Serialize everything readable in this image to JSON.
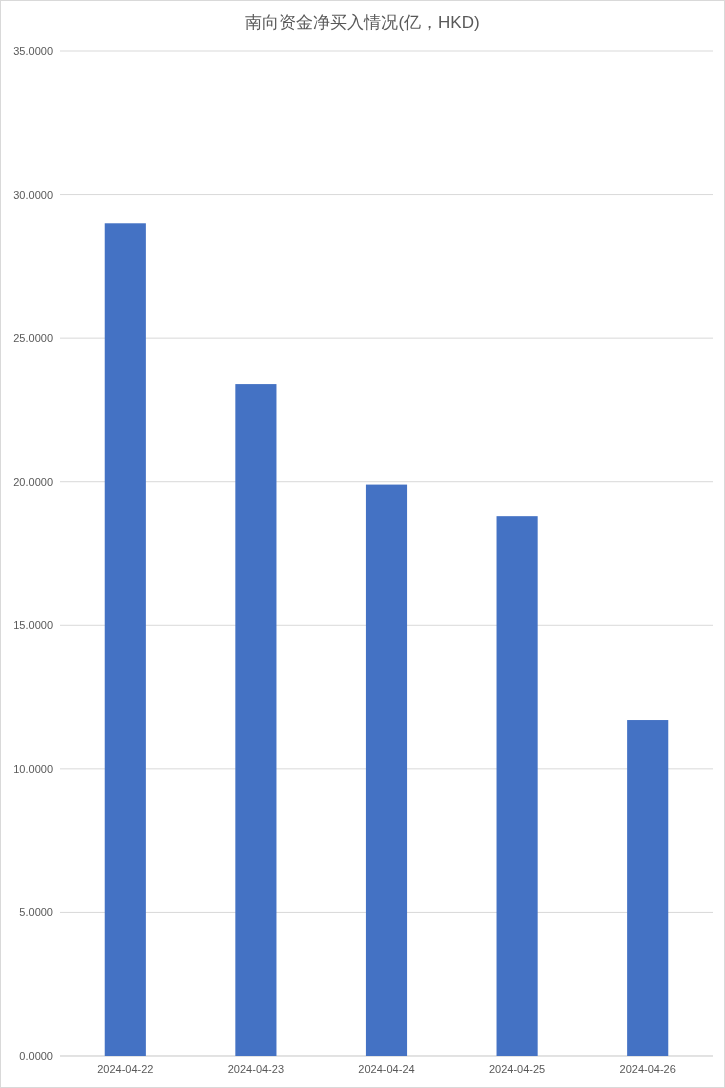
{
  "chart_data": {
    "type": "bar",
    "title": "南向资金净买入情况(亿，HKD)",
    "categories": [
      "2024-04-22",
      "2024-04-23",
      "2024-04-24",
      "2024-04-25",
      "2024-04-26"
    ],
    "values": [
      29.0,
      23.4,
      19.9,
      18.8,
      11.7
    ],
    "color": "#4472c4",
    "ylim": [
      0,
      35
    ],
    "yticks": [
      {
        "value": 0,
        "label": "0.0000"
      },
      {
        "value": 5,
        "label": "5.0000"
      },
      {
        "value": 10,
        "label": "10.0000"
      },
      {
        "value": 15,
        "label": "15.0000"
      },
      {
        "value": 20,
        "label": "20.0000"
      },
      {
        "value": 25,
        "label": "25.0000"
      },
      {
        "value": 30,
        "label": "30.0000"
      },
      {
        "value": 35,
        "label": "35.0000"
      }
    ],
    "grid": "y"
  }
}
